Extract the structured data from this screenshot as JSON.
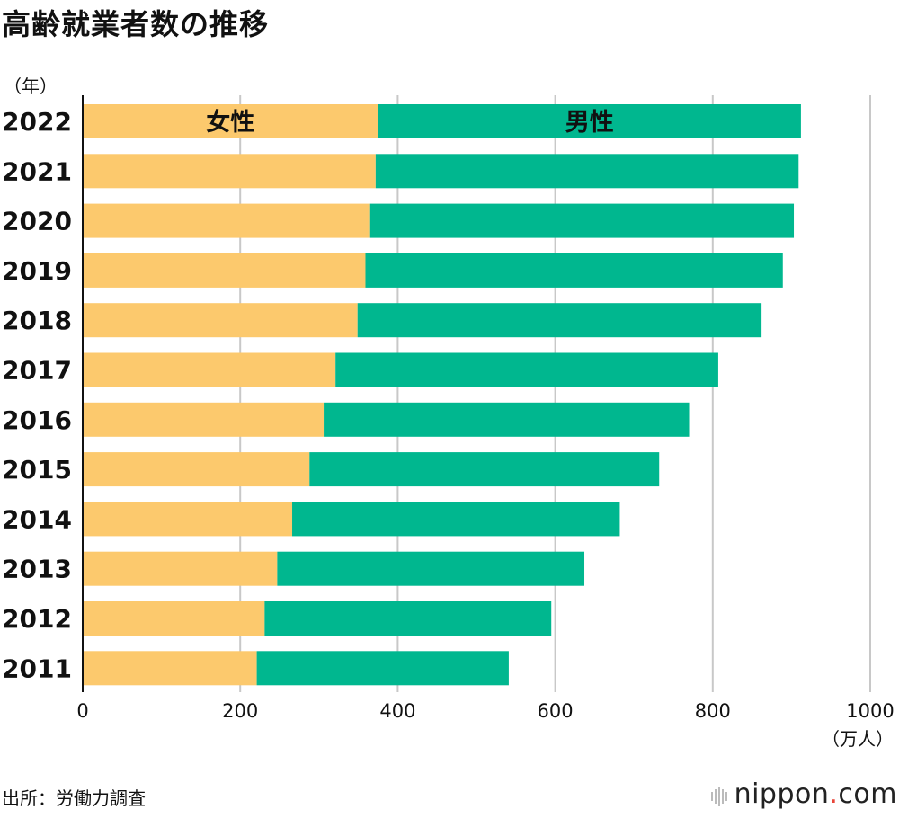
{
  "title": "高齢就業者数の推移",
  "y_unit": "（年）",
  "x_unit": "（万人）",
  "source": "出所：労働力調査",
  "brand": {
    "name": "nippon",
    "dot": ".",
    "tld": "com"
  },
  "colors": {
    "female": "#FCC96D",
    "male": "#00B78F",
    "grid": "#c8c8c8",
    "axis": "#111111"
  },
  "chart_data": {
    "type": "bar",
    "orientation": "horizontal",
    "stacked": true,
    "title": "高齢就業者数の推移",
    "xlabel": "（万人）",
    "ylabel": "（年）",
    "xlim": [
      0,
      1000
    ],
    "xticks": [
      0,
      200,
      400,
      600,
      800,
      1000
    ],
    "categories": [
      "2022",
      "2021",
      "2020",
      "2019",
      "2018",
      "2017",
      "2016",
      "2015",
      "2014",
      "2013",
      "2012",
      "2011"
    ],
    "series": [
      {
        "name": "女性",
        "values": [
          375,
          372,
          365,
          359,
          349,
          321,
          306,
          288,
          266,
          247,
          231,
          221
        ]
      },
      {
        "name": "男性",
        "values": [
          537,
          537,
          538,
          530,
          513,
          486,
          464,
          444,
          416,
          390,
          364,
          320
        ]
      }
    ],
    "grid": true,
    "legend": "inline-top-bar"
  }
}
